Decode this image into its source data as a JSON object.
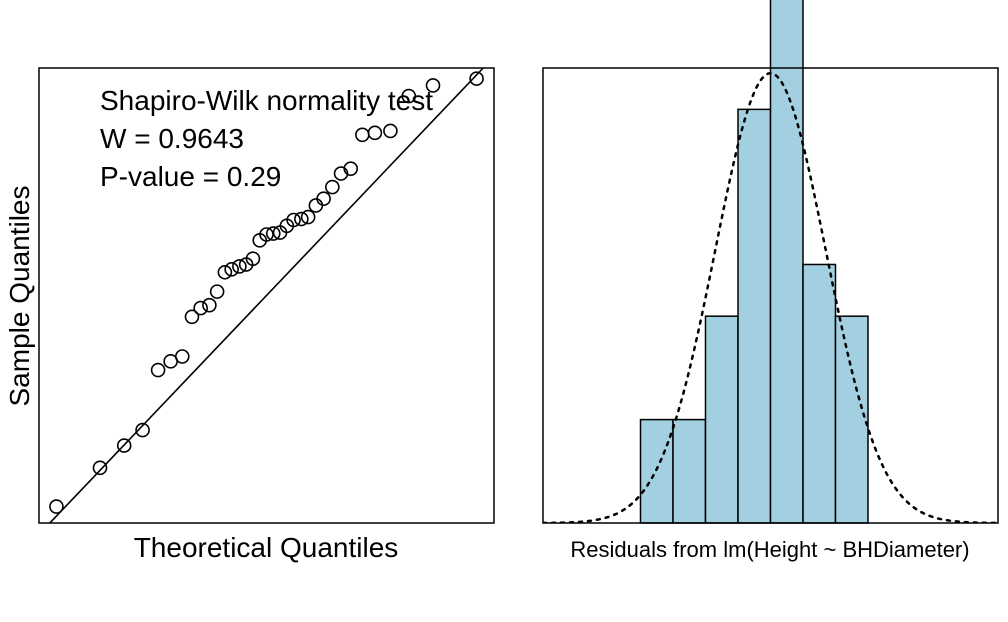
{
  "colors": {
    "bar_fill": "#a2d0e0",
    "stroke": "#000000",
    "background": "#ffffff"
  },
  "chart_data": [
    {
      "type": "scatter",
      "subtype": "qq-plot",
      "xlabel": "Theoretical Quantiles",
      "ylabel": "Sample Quantiles",
      "axis_ticks": false,
      "xlim": [
        -2.35,
        2.35
      ],
      "ylim": [
        -2.35,
        2.35
      ],
      "reference_line": {
        "intercept": 0,
        "slope": 1.05
      },
      "annotation": {
        "title": "Shapiro-Wilk normality test",
        "w_label": "W = 0.9643",
        "p_label": "P-value = 0.29"
      },
      "points": [
        {
          "x": -2.17,
          "y": -2.18
        },
        {
          "x": -1.72,
          "y": -1.78
        },
        {
          "x": -1.47,
          "y": -1.55
        },
        {
          "x": -1.28,
          "y": -1.39
        },
        {
          "x": -1.12,
          "y": -0.77
        },
        {
          "x": -0.99,
          "y": -0.68
        },
        {
          "x": -0.87,
          "y": -0.63
        },
        {
          "x": -0.77,
          "y": -0.22
        },
        {
          "x": -0.68,
          "y": -0.13
        },
        {
          "x": -0.59,
          "y": -0.1
        },
        {
          "x": -0.51,
          "y": 0.04
        },
        {
          "x": -0.43,
          "y": 0.24
        },
        {
          "x": -0.36,
          "y": 0.27
        },
        {
          "x": -0.28,
          "y": 0.3
        },
        {
          "x": -0.21,
          "y": 0.32
        },
        {
          "x": -0.14,
          "y": 0.38
        },
        {
          "x": -0.07,
          "y": 0.57
        },
        {
          "x": 0.0,
          "y": 0.63
        },
        {
          "x": 0.07,
          "y": 0.64
        },
        {
          "x": 0.14,
          "y": 0.65
        },
        {
          "x": 0.21,
          "y": 0.72
        },
        {
          "x": 0.28,
          "y": 0.78
        },
        {
          "x": 0.36,
          "y": 0.79
        },
        {
          "x": 0.43,
          "y": 0.81
        },
        {
          "x": 0.51,
          "y": 0.93
        },
        {
          "x": 0.59,
          "y": 1.0
        },
        {
          "x": 0.68,
          "y": 1.12
        },
        {
          "x": 0.77,
          "y": 1.26
        },
        {
          "x": 0.87,
          "y": 1.31
        },
        {
          "x": 0.99,
          "y": 1.66
        },
        {
          "x": 1.12,
          "y": 1.68
        },
        {
          "x": 1.28,
          "y": 1.7
        },
        {
          "x": 1.47,
          "y": 2.06
        },
        {
          "x": 1.72,
          "y": 2.17
        },
        {
          "x": 2.17,
          "y": 2.24
        }
      ]
    },
    {
      "type": "bar",
      "subtype": "histogram",
      "xlabel": "Residuals from lm(Height ~ BHDiameter)",
      "ylabel": "",
      "axis_ticks": false,
      "xlim": [
        -3.5,
        3.5
      ],
      "ylim": [
        0,
        8.8
      ],
      "bin_edges": [
        -2,
        -1.5,
        -1,
        -0.5,
        0,
        0.5,
        1,
        1.5
      ],
      "counts": [
        2,
        2,
        4,
        8,
        11,
        5,
        4
      ],
      "density_curve": {
        "style": "dotted",
        "mean": 0,
        "sd": 0.85,
        "peak_count": 8.7
      }
    }
  ]
}
